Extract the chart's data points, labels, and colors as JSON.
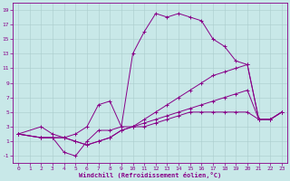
{
  "xlabel": "Windchill (Refroidissement éolien,°C)",
  "bg_color": "#c8e8e8",
  "line_color": "#880088",
  "grid_color": "#aacccc",
  "xlim": [
    -0.5,
    23.5
  ],
  "ylim": [
    -2,
    20
  ],
  "xticks": [
    0,
    1,
    2,
    3,
    4,
    5,
    6,
    7,
    8,
    9,
    10,
    11,
    12,
    13,
    14,
    15,
    16,
    17,
    18,
    19,
    20,
    21,
    22,
    23
  ],
  "yticks": [
    -1,
    1,
    3,
    5,
    7,
    9,
    11,
    13,
    15,
    17,
    19
  ],
  "series": [
    {
      "x": [
        0,
        2,
        3,
        4,
        5,
        6,
        7,
        8,
        9,
        10,
        11,
        12,
        13,
        14,
        15,
        16,
        17,
        18,
        19,
        20,
        21,
        22,
        23
      ],
      "y": [
        2,
        3,
        2,
        1.5,
        2,
        3,
        6,
        6.5,
        3,
        13,
        16,
        18.5,
        18,
        18.5,
        18,
        17.5,
        15,
        14,
        12,
        11.5,
        4,
        4,
        5
      ]
    },
    {
      "x": [
        0,
        2,
        3,
        4,
        5,
        6,
        7,
        8,
        9,
        10,
        11,
        12,
        13,
        14,
        15,
        16,
        17,
        18,
        19,
        20,
        21,
        22,
        23
      ],
      "y": [
        2,
        1.5,
        1.5,
        1.5,
        1,
        0.5,
        1,
        1.5,
        2.5,
        3,
        4,
        5,
        6,
        7,
        8,
        9,
        10,
        10.5,
        11,
        11.5,
        4,
        4,
        5
      ]
    },
    {
      "x": [
        0,
        2,
        3,
        4,
        5,
        6,
        7,
        8,
        9,
        10,
        11,
        12,
        13,
        14,
        15,
        16,
        17,
        18,
        19,
        20,
        21,
        22,
        23
      ],
      "y": [
        2,
        1.5,
        1.5,
        -0.5,
        -1,
        1,
        2.5,
        2.5,
        3,
        3,
        3,
        3.5,
        4,
        4.5,
        5,
        5,
        5,
        5,
        5,
        5,
        4,
        4,
        5
      ]
    },
    {
      "x": [
        0,
        2,
        3,
        4,
        5,
        6,
        7,
        8,
        9,
        10,
        11,
        12,
        13,
        14,
        15,
        16,
        17,
        18,
        19,
        20,
        21,
        22,
        23
      ],
      "y": [
        2,
        1.5,
        1.5,
        1.5,
        1,
        0.5,
        1,
        1.5,
        2.5,
        3,
        3.5,
        4,
        4.5,
        5,
        5.5,
        6,
        6.5,
        7,
        7.5,
        8,
        4,
        4,
        5
      ]
    }
  ]
}
